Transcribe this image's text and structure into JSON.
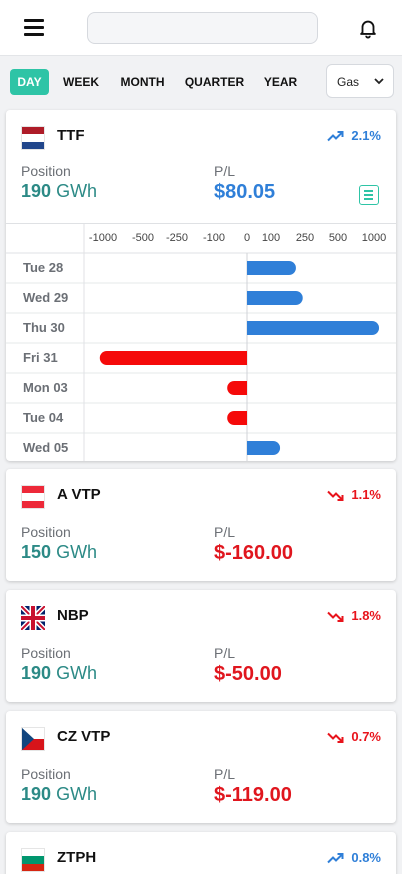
{
  "header": {
    "search_value": "",
    "search_placeholder": ""
  },
  "periods": [
    {
      "label": "DAY",
      "active": true
    },
    {
      "label": "WEEK",
      "active": false
    },
    {
      "label": "MONTH",
      "active": false
    },
    {
      "label": "QUARTER",
      "active": false
    },
    {
      "label": "YEAR",
      "active": false
    }
  ],
  "commodity_select": {
    "value": "Gas"
  },
  "labels": {
    "position": "Position",
    "pl": "P/L"
  },
  "markets": [
    {
      "name": "TTF",
      "flag": "netherlands",
      "trend": "up",
      "change": "2.1%",
      "position": "190",
      "unit": "GWh",
      "pl": "$80.05"
    },
    {
      "name": "A VTP",
      "flag": "austria",
      "trend": "down",
      "change": "1.1%",
      "position": "150",
      "unit": "GWh",
      "pl": "$-160.00"
    },
    {
      "name": "NBP",
      "flag": "uk",
      "trend": "down",
      "change": "1.8%",
      "position": "190",
      "unit": "GWh",
      "pl": "$-50.00"
    },
    {
      "name": "CZ VTP",
      "flag": "czech",
      "trend": "down",
      "change": "0.7%",
      "position": "190",
      "unit": "GWh",
      "pl": "$-119.00"
    },
    {
      "name": "ZTPH",
      "flag": "bulgaria",
      "trend": "up",
      "change": "0.8%",
      "position": "",
      "unit": "",
      "pl": ""
    }
  ],
  "chart_data": {
    "type": "bar",
    "orientation": "horizontal",
    "categories": [
      "Tue 28",
      "Wed 29",
      "Thu 30",
      "Fri 31",
      "Mon 03",
      "Tue 04",
      "Wed 05"
    ],
    "values": [
      210,
      240,
      1070,
      -1040,
      -60,
      -60,
      140
    ],
    "x_ticks": [
      "-1000",
      "-500",
      "-250",
      "-100",
      "0",
      "100",
      "250",
      "500",
      "1000"
    ],
    "x_tick_values": [
      -1000,
      -500,
      -250,
      -100,
      0,
      100,
      250,
      500,
      1000
    ],
    "positive_color": "#2f7fd8",
    "negative_color": "#f50a0a"
  },
  "colors": {
    "accent": "#2ec4a6",
    "position_teal": "#2c8a86",
    "positive_blue": "#2f7fd8",
    "negative_red": "#e0161e"
  }
}
